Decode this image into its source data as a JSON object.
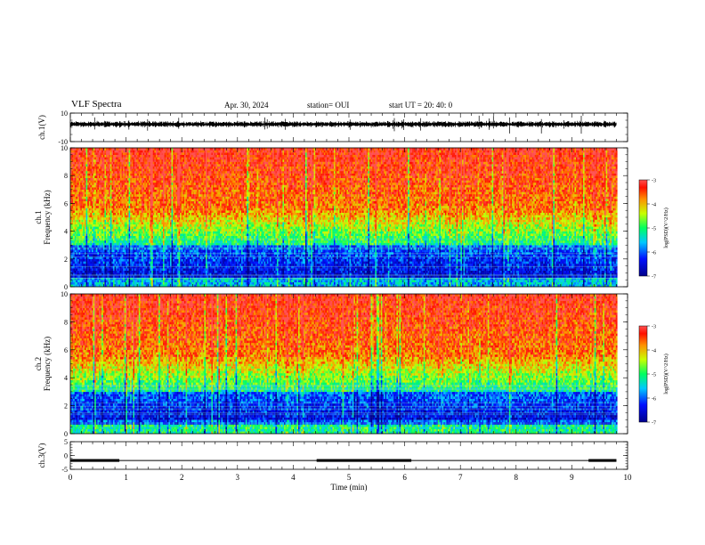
{
  "header": {
    "title": "VLF Spectra",
    "date": "Apr. 30, 2024",
    "station": "station= OUI",
    "start": "start  UT  =   20: 40: 0"
  },
  "chart_data": [
    {
      "type": "line",
      "panel": "ch1-waveform",
      "ylabel": "ch.1(V)",
      "ylim": [
        -10,
        10
      ],
      "yticks": [
        "10",
        "-10"
      ],
      "xlim": [
        0,
        10
      ],
      "baseline": 2.2,
      "color": "#000000"
    },
    {
      "type": "heatmap",
      "panel": "ch1-spectrogram",
      "ylabel_top": "ch.1",
      "ylabel": "Frequency (kHz)",
      "ylim": [
        0,
        10
      ],
      "yticks": [
        "0",
        "2",
        "4",
        "6",
        "8",
        "10"
      ],
      "xlim": [
        0,
        10
      ],
      "data_end_min": 9.8,
      "colorbar": {
        "label": "log(PSD)(V^2/Hz)",
        "range": [
          -7,
          -3
        ],
        "ticks": [
          "-3",
          "-4",
          "-5",
          "-6",
          "-7"
        ]
      }
    },
    {
      "type": "heatmap",
      "panel": "ch2-spectrogram",
      "ylabel_top": "ch.2",
      "ylabel": "Frequency (kHz)",
      "ylim": [
        0,
        10
      ],
      "yticks": [
        "0",
        "2",
        "4",
        "6",
        "8",
        "10"
      ],
      "xlim": [
        0,
        10
      ],
      "data_end_min": 9.8,
      "colorbar": {
        "label": "log(PSD)(V^2/Hz)",
        "range": [
          -7,
          -3
        ],
        "ticks": [
          "-3",
          "-4",
          "-5",
          "-6",
          "-7"
        ]
      }
    },
    {
      "type": "line",
      "panel": "ch3-signal",
      "ylabel": "ch.3(V)",
      "ylim": [
        -5,
        5
      ],
      "yticks": [
        "5",
        "0",
        "-5"
      ],
      "xlim": [
        0,
        10
      ],
      "xticks": [
        "0",
        "1",
        "2",
        "3",
        "4",
        "5",
        "6",
        "7",
        "8",
        "9",
        "10"
      ],
      "xlabel": "Time (min)",
      "level": -1.8,
      "thick_segments": [
        [
          0,
          0.88
        ],
        [
          4.42,
          6.12
        ],
        [
          9.3,
          9.8
        ]
      ]
    }
  ]
}
